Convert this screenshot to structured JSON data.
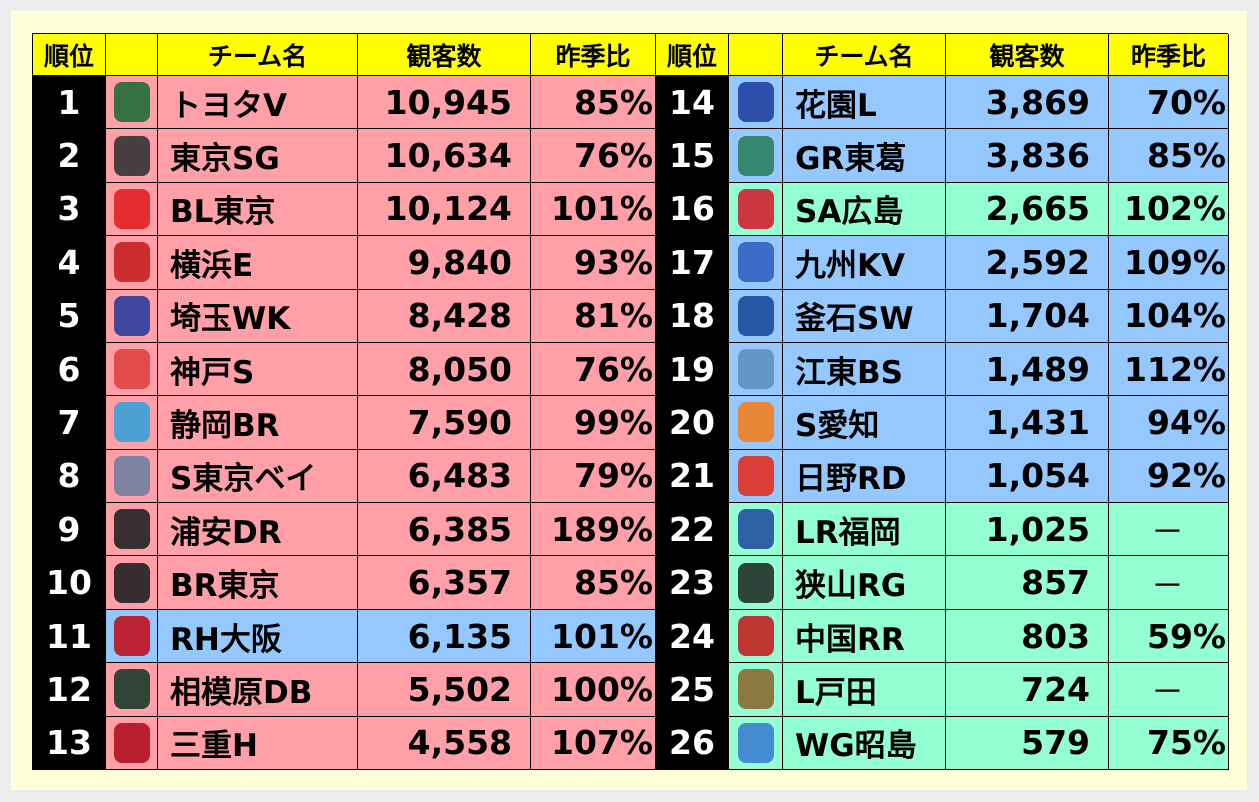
{
  "headers": {
    "rank": "順位",
    "logo": "",
    "team": "チーム名",
    "attendance": "観客数",
    "ratio": "昨季比"
  },
  "colors": {
    "header": "#ffff00",
    "pink": "#ffa0a8",
    "blue": "#94c8ff",
    "green": "#94ffd2",
    "rank_bg": "#000000"
  },
  "left": [
    {
      "rank": "1",
      "team": "トヨタV",
      "attendance": "10,945",
      "ratio": "85%",
      "color": "pink",
      "logo": "#1f6b3a"
    },
    {
      "rank": "2",
      "team": "東京SG",
      "attendance": "10,634",
      "ratio": "76%",
      "color": "pink",
      "logo": "#333333"
    },
    {
      "rank": "3",
      "team": "BL東京",
      "attendance": "10,124",
      "ratio": "101%",
      "color": "pink",
      "logo": "#e02020"
    },
    {
      "rank": "4",
      "team": "横浜E",
      "attendance": "9,840",
      "ratio": "93%",
      "color": "pink",
      "logo": "#c82020"
    },
    {
      "rank": "5",
      "team": "埼玉WK",
      "attendance": "8,428",
      "ratio": "81%",
      "color": "pink",
      "logo": "#2a3c9a"
    },
    {
      "rank": "6",
      "team": "神戸S",
      "attendance": "8,050",
      "ratio": "76%",
      "color": "pink",
      "logo": "#e04040"
    },
    {
      "rank": "7",
      "team": "静岡BR",
      "attendance": "7,590",
      "ratio": "99%",
      "color": "pink",
      "logo": "#3aa0d8"
    },
    {
      "rank": "8",
      "team": "S東京ベイ",
      "attendance": "6,483",
      "ratio": "79%",
      "color": "pink",
      "logo": "#7080a0"
    },
    {
      "rank": "9",
      "team": "浦安DR",
      "attendance": "6,385",
      "ratio": "189%",
      "color": "pink",
      "logo": "#222222"
    },
    {
      "rank": "10",
      "team": "BR東京",
      "attendance": "6,357",
      "ratio": "85%",
      "color": "pink",
      "logo": "#202020"
    },
    {
      "rank": "11",
      "team": "RH大阪",
      "attendance": "6,135",
      "ratio": "101%",
      "color": "blue",
      "logo": "#c01020"
    },
    {
      "rank": "12",
      "team": "相模原DB",
      "attendance": "5,502",
      "ratio": "100%",
      "color": "pink",
      "logo": "#1a3a2a"
    },
    {
      "rank": "13",
      "team": "三重H",
      "attendance": "4,558",
      "ratio": "107%",
      "color": "pink",
      "logo": "#b01020"
    }
  ],
  "right": [
    {
      "rank": "14",
      "team": "花園L",
      "attendance": "3,869",
      "ratio": "70%",
      "color": "blue",
      "logo": "#2040a0"
    },
    {
      "rank": "15",
      "team": "GR東葛",
      "attendance": "3,836",
      "ratio": "85%",
      "color": "blue",
      "logo": "#2a8060"
    },
    {
      "rank": "16",
      "team": "SA広島",
      "attendance": "2,665",
      "ratio": "102%",
      "color": "green",
      "logo": "#d02030"
    },
    {
      "rank": "17",
      "team": "九州KV",
      "attendance": "2,592",
      "ratio": "109%",
      "color": "blue",
      "logo": "#3060c0"
    },
    {
      "rank": "18",
      "team": "釜石SW",
      "attendance": "1,704",
      "ratio": "104%",
      "color": "blue",
      "logo": "#1a4a9a"
    },
    {
      "rank": "19",
      "team": "江東BS",
      "attendance": "1,489",
      "ratio": "112%",
      "color": "blue",
      "logo": "#6090c0"
    },
    {
      "rank": "20",
      "team": "S愛知",
      "attendance": "1,431",
      "ratio": "94%",
      "color": "blue",
      "logo": "#f08020"
    },
    {
      "rank": "21",
      "team": "日野RD",
      "attendance": "1,054",
      "ratio": "92%",
      "color": "blue",
      "logo": "#e03020"
    },
    {
      "rank": "22",
      "team": "LR福岡",
      "attendance": "1,025",
      "ratio": "－",
      "color": "green",
      "logo": "#2050a0"
    },
    {
      "rank": "23",
      "team": "狭山RG",
      "attendance": "857",
      "ratio": "－",
      "color": "green",
      "logo": "#203028"
    },
    {
      "rank": "24",
      "team": "中国RR",
      "attendance": "803",
      "ratio": "59%",
      "color": "green",
      "logo": "#c02020"
    },
    {
      "rank": "25",
      "team": "L戸田",
      "attendance": "724",
      "ratio": "－",
      "color": "green",
      "logo": "#8a6a30"
    },
    {
      "rank": "26",
      "team": "WG昭島",
      "attendance": "579",
      "ratio": "75%",
      "color": "green",
      "logo": "#3a80d0"
    }
  ]
}
